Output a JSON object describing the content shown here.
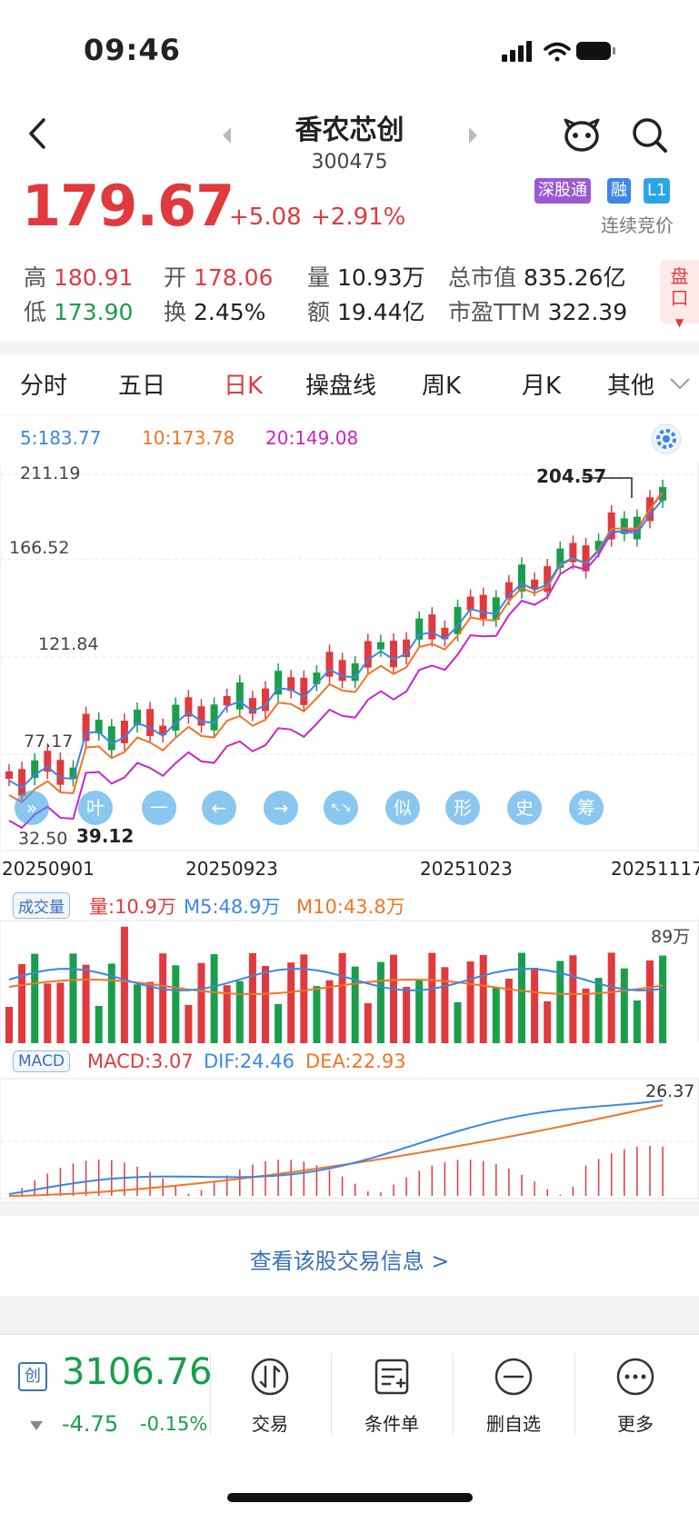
{
  "status_bar": {
    "time": "09:46"
  },
  "header": {
    "title": "香农芯创",
    "code": "300475",
    "price": "179.67",
    "change": "+5.08",
    "change_pct": "+2.91%",
    "tags": [
      "深股通",
      "融",
      "L1"
    ],
    "trade_mode": "连续竞价"
  },
  "quote": {
    "high_label": "高",
    "high": "180.91",
    "low_label": "低",
    "low": "173.90",
    "open_label": "开",
    "open": "178.06",
    "turnover_label": "换",
    "turnover": "2.45%",
    "volume_label": "量",
    "volume": "10.93万",
    "amount_label": "额",
    "amount": "19.44亿",
    "mktcap_label": "总市值",
    "mktcap": "835.26亿",
    "pe_label": "市盈TTM",
    "pe": "322.39",
    "pankou": "盘口"
  },
  "tabs": [
    "分时",
    "五日",
    "日K",
    "操盘线",
    "周K",
    "月K",
    "其他"
  ],
  "ma_legend": {
    "ma5": "5:183.77",
    "ma10": "10:173.78",
    "ma20": "20:149.08"
  },
  "colors": {
    "up": "#e03a3e",
    "down": "#1a9e4b",
    "ma5": "#3b86e6",
    "ma10": "#f07426",
    "ma20": "#c627c9"
  },
  "kline": {
    "y_labels": [
      "211.19",
      "166.52",
      "121.84",
      "77.17",
      "32.50"
    ],
    "high_mark": "204.57",
    "low_mark": "39.12",
    "x_labels": [
      "20250901",
      "20250923",
      "20251023",
      "20251117"
    ],
    "tool_buttons": [
      "»",
      "叶",
      "一",
      "←",
      "→",
      "↖↘",
      "似",
      "形",
      "史",
      "筹"
    ]
  },
  "volume": {
    "badge": "成交量",
    "vol": "量:10.9万",
    "m5": "M5:48.9万",
    "m10": "M10:43.8万",
    "max_label": "89万"
  },
  "macd": {
    "badge": "MACD",
    "macd": "MACD:3.07",
    "dif": "DIF:24.46",
    "dea": "DEA:22.93",
    "max_label": "26.37"
  },
  "trade_info_link": "查看该股交易信息 >",
  "index_bar": {
    "badge": "创",
    "value": "3106.76",
    "change": "-4.75",
    "change_pct": "-0.15%"
  },
  "toolbar": [
    "交易",
    "条件单",
    "删自选",
    "更多"
  ]
}
